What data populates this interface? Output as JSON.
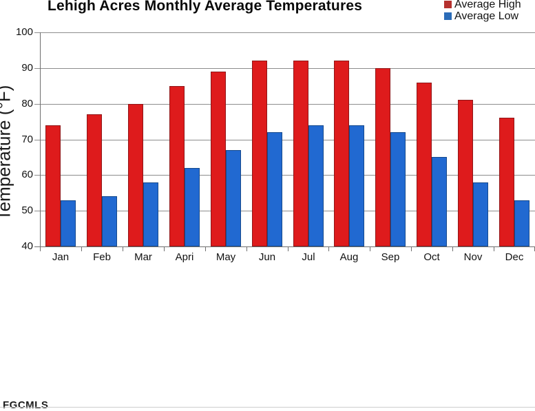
{
  "chart_data": {
    "type": "bar",
    "title": "Lehigh Acres Monthly Average Temperatures",
    "categories": [
      "Jan",
      "Feb",
      "Mar",
      "Apri",
      "May",
      "Jun",
      "Jul",
      "Aug",
      "Sep",
      "Oct",
      "Nov",
      "Dec"
    ],
    "series": [
      {
        "name": "Average High",
        "bar_color": "#DE1B1C",
        "bar_border_color": "#8F1517",
        "legend_color": "#B5312E",
        "values": [
          74,
          77,
          80,
          85,
          89,
          92,
          92,
          92,
          90,
          86,
          81,
          76
        ]
      },
      {
        "name": "Average Low",
        "bar_color": "#2169D1",
        "bar_border_color": "#15498C",
        "legend_color": "#2B6CB8",
        "values": [
          53,
          54,
          58,
          62,
          67,
          72,
          74,
          74,
          72,
          65,
          58,
          53
        ]
      }
    ],
    "xlabel": "",
    "ylabel": "Temperature (°F)",
    "ylim": [
      40,
      100
    ],
    "yticks": [
      40,
      50,
      60,
      70,
      80,
      90,
      100
    ],
    "grid": true,
    "legend_position": "top-right"
  },
  "watermark": {
    "text": "FGCMLS"
  },
  "colors": {
    "background": "#ffffff",
    "gridline": "#8c8c8c",
    "axis": "#6e6e6e",
    "divider": "#cccccc",
    "text": "#000000"
  }
}
